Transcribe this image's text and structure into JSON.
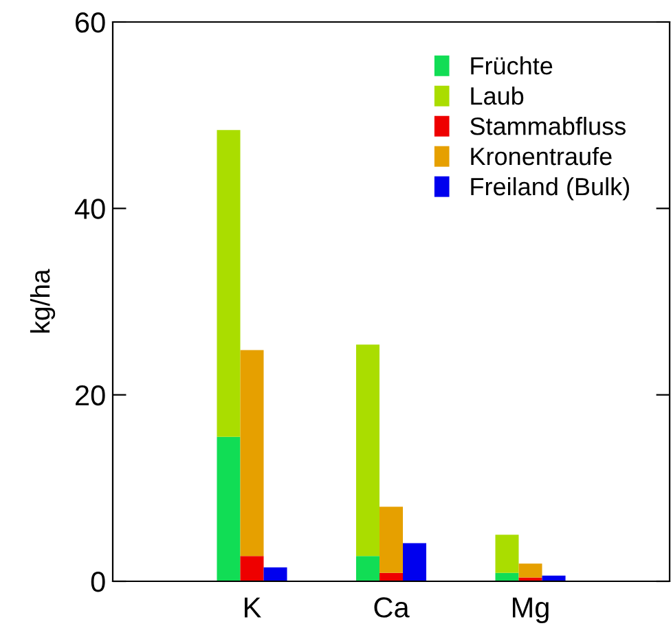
{
  "chart_data": {
    "type": "bar",
    "stacked": true,
    "ylabel": "kg/ha",
    "categories": [
      null,
      "K",
      null,
      null,
      "Ca",
      null,
      null,
      "Mg",
      null
    ],
    "series": [
      {
        "name": "Früchte",
        "color": "#11dd55",
        "values": [
          15.5,
          null,
          null,
          2.7,
          null,
          null,
          0.9,
          null,
          null
        ]
      },
      {
        "name": "Laub",
        "color": "#aadd00",
        "values": [
          32.9,
          null,
          null,
          22.7,
          null,
          null,
          4.1,
          null,
          null
        ]
      },
      {
        "name": "Stammabfluss",
        "color": "#ee0000",
        "values": [
          null,
          2.7,
          null,
          null,
          0.9,
          null,
          null,
          0.4,
          null
        ]
      },
      {
        "name": "Kronentraufe",
        "color": "#e6a000",
        "values": [
          null,
          22.1,
          null,
          null,
          7.1,
          null,
          null,
          1.5,
          null
        ]
      },
      {
        "name": "Freiland (Bulk)",
        "color": "#0000ee",
        "values": [
          null,
          null,
          1.5,
          null,
          null,
          4.1,
          null,
          null,
          0.6
        ]
      }
    ],
    "ylim": [
      0,
      60
    ],
    "yticks": [
      0,
      20,
      40,
      60
    ],
    "grid": false,
    "legend": "top right"
  }
}
